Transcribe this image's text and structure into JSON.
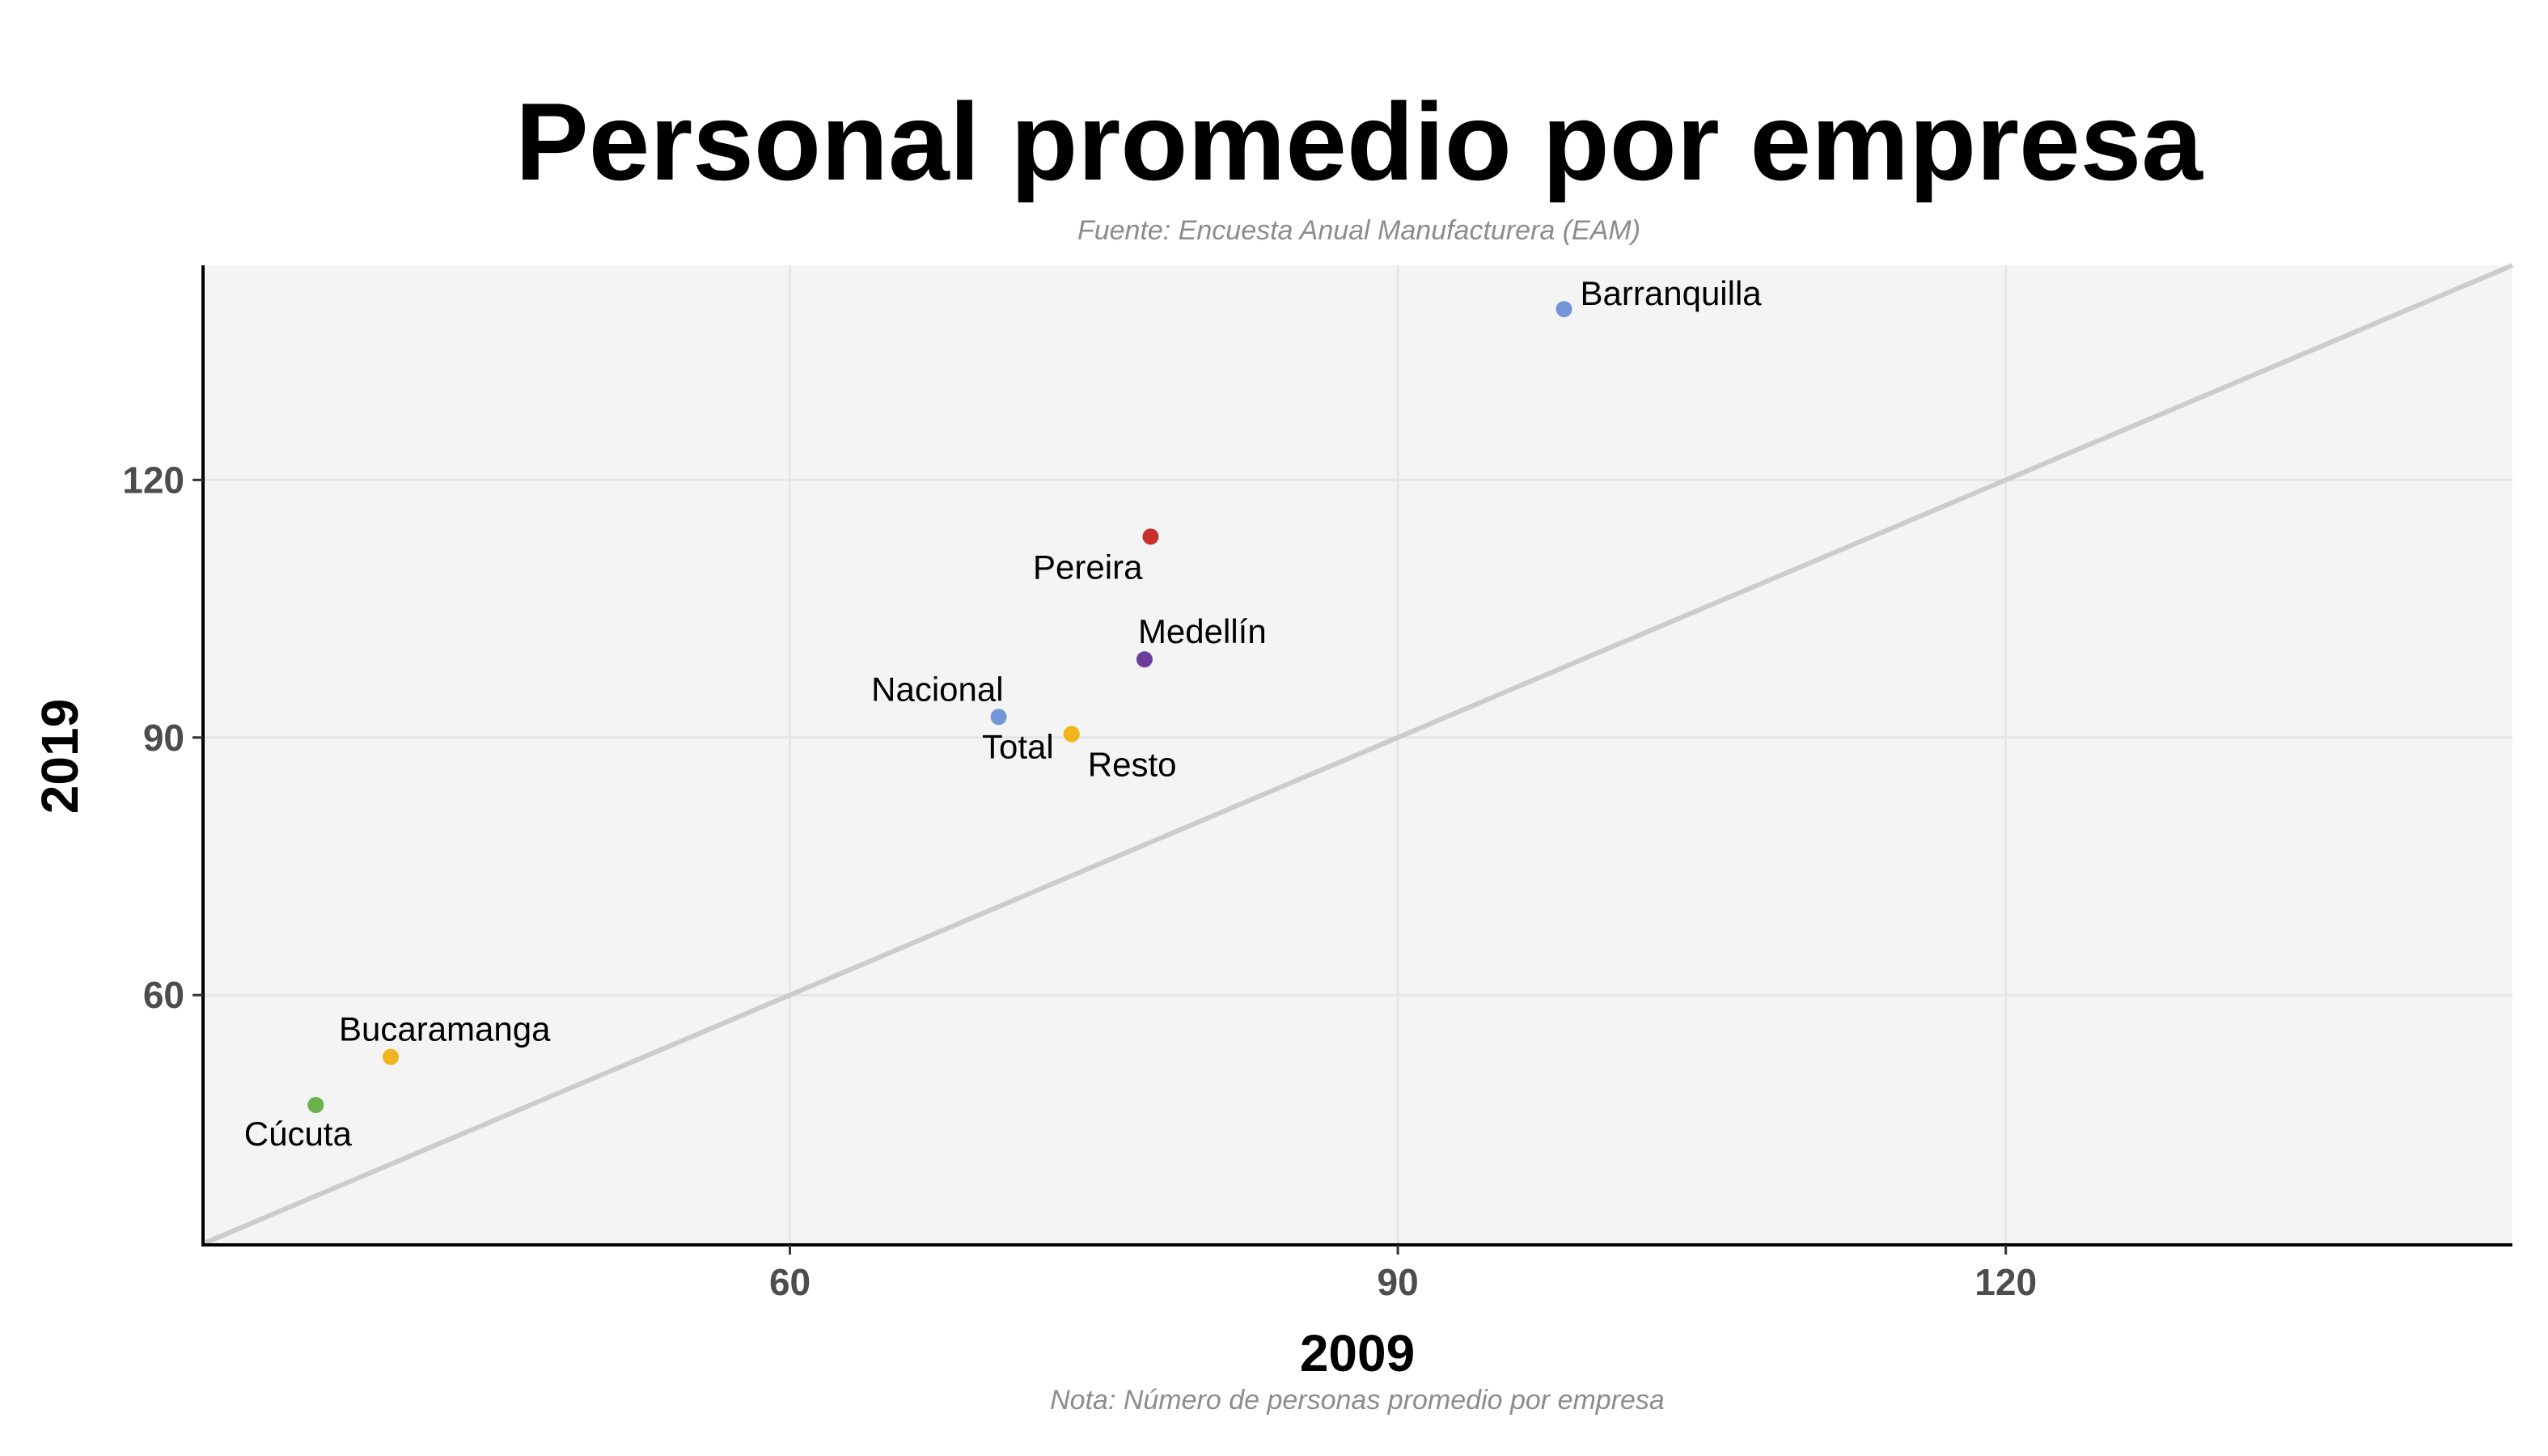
{
  "chart_data": {
    "type": "scatter",
    "title": "Personal promedio por empresa",
    "subtitle": "Fuente: Encuesta Anual Manufacturera (EAM)",
    "caption": "Nota: Número de personas promedio por empresa",
    "xlabel": "2009",
    "ylabel": "2019",
    "xlim": [
      31,
      145
    ],
    "ylim": [
      31,
      145
    ],
    "x_ticks": [
      60,
      90,
      120
    ],
    "y_ticks": [
      60,
      90,
      120
    ],
    "grid": true,
    "reference_line": "y = x",
    "colors": {
      "panel_background": "#f4f4f4",
      "grid": "#e6e6e6",
      "axis_line": "#000000",
      "reference_line": "#cccccc"
    },
    "points": [
      {
        "label": "Barranquilla",
        "x": 98.2,
        "y": 139.9,
        "color": "#7396d6"
      },
      {
        "label": "Pereira",
        "x": 77.8,
        "y": 113.4,
        "color": "#c8302a"
      },
      {
        "label": "Medellín",
        "x": 77.5,
        "y": 99.1,
        "color": "#6a3d9a"
      },
      {
        "label": "Nacional",
        "x": 70.3,
        "y": 92.4,
        "color": "#7396d6"
      },
      {
        "label": "Total",
        "x": 73.9,
        "y": 90.4,
        "color": "#f0b41e"
      },
      {
        "label": "Resto",
        "x": 73.9,
        "y": 90.4,
        "color": "#f0b41e"
      },
      {
        "label": "Bucaramanga",
        "x": 40.3,
        "y": 52.8,
        "color": "#f0b41e"
      },
      {
        "label": "Cúcuta",
        "x": 36.6,
        "y": 47.2,
        "color": "#6ab04c"
      }
    ]
  }
}
